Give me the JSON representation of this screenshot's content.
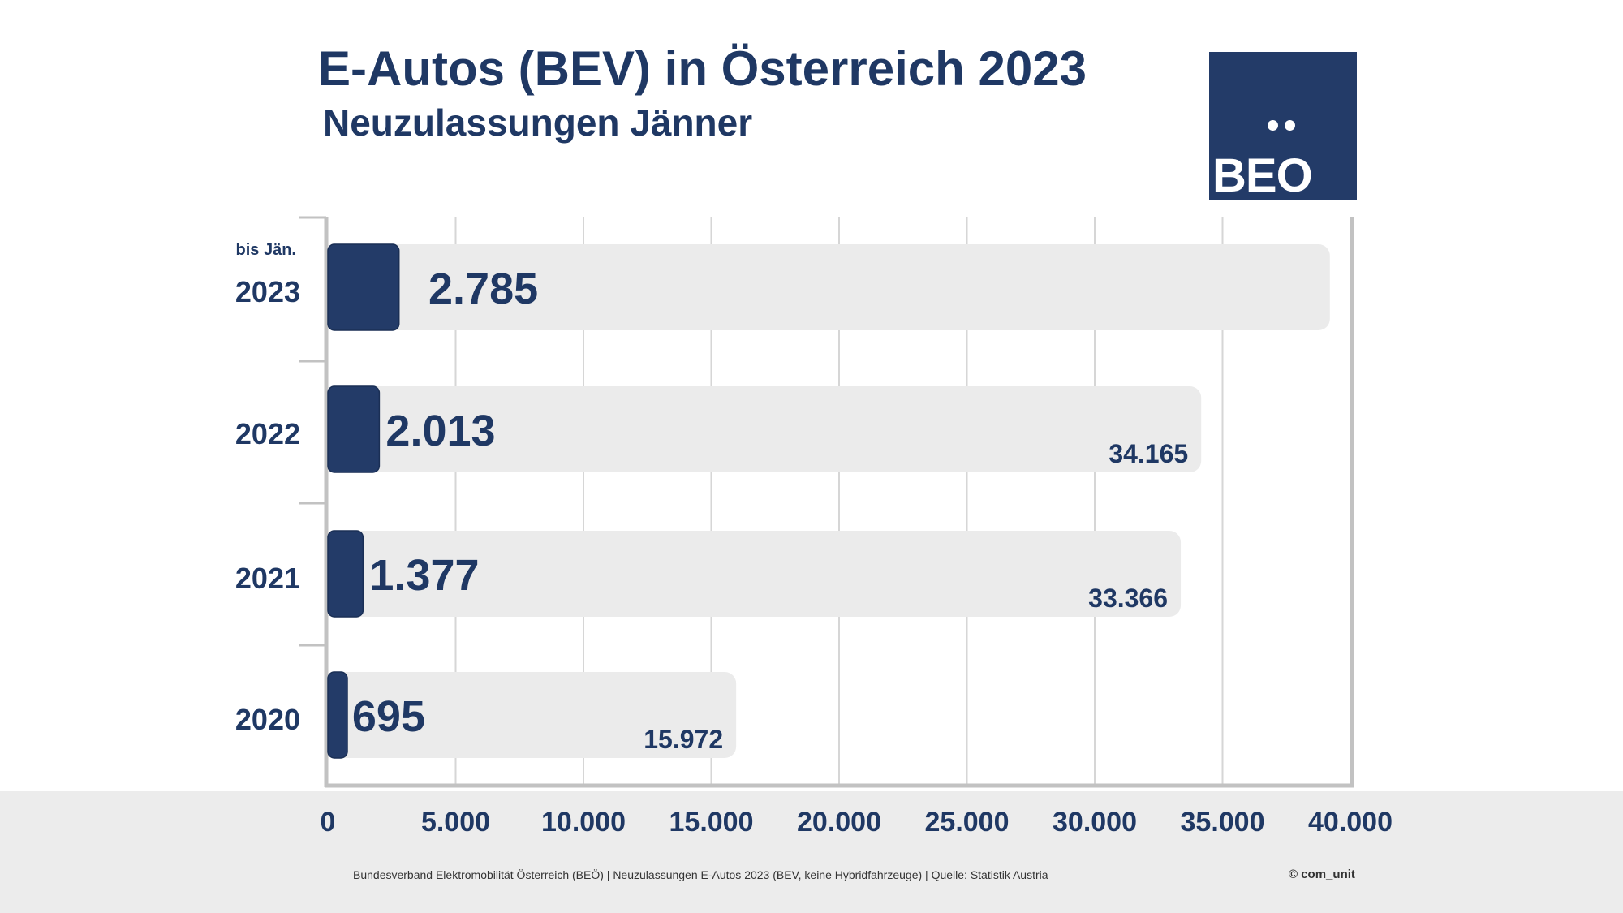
{
  "header": {
    "title": "E-Autos (BEV) in Österreich 2023",
    "subtitle": "Neuzulassungen Jänner"
  },
  "logo": {
    "text": "BEO",
    "icon": "two-dots-icon",
    "bg_color": "#233b68"
  },
  "footer": {
    "source": "Bundesverband Elektromobilität Österreich (BEÖ) | Neuzulassungen E-Autos 2023 (BEV, keine Hybridfahrzeuge) | Quelle: Statistik Austria",
    "copyright": "© com_unit"
  },
  "colors": {
    "bar_dark": "#233b68",
    "bar_light": "#ebebeb",
    "text": "#1f3864"
  },
  "chart_data": {
    "type": "bar",
    "orientation": "horizontal",
    "xlim": [
      0,
      40000
    ],
    "x_ticks": [
      0,
      5000,
      10000,
      15000,
      20000,
      25000,
      30000,
      35000,
      40000
    ],
    "x_tick_labels": [
      "0",
      "5.000",
      "10.000",
      "15.000",
      "20.000",
      "25.000",
      "30.000",
      "35.000",
      "40.000"
    ],
    "grid": true,
    "categories": [
      {
        "label": "2023",
        "prefix": "bis Jän."
      },
      {
        "label": "2022",
        "prefix": ""
      },
      {
        "label": "2021",
        "prefix": ""
      },
      {
        "label": "2020",
        "prefix": ""
      }
    ],
    "series": [
      {
        "values": [
          2785,
          2013,
          1377,
          695
        ],
        "labels": [
          "2.785",
          "2.013",
          "1.377",
          "695"
        ]
      },
      {
        "values": [
          39200,
          34165,
          33366,
          15972
        ],
        "labels": [
          "",
          "34.165",
          "33.366",
          "15.972"
        ]
      }
    ]
  }
}
